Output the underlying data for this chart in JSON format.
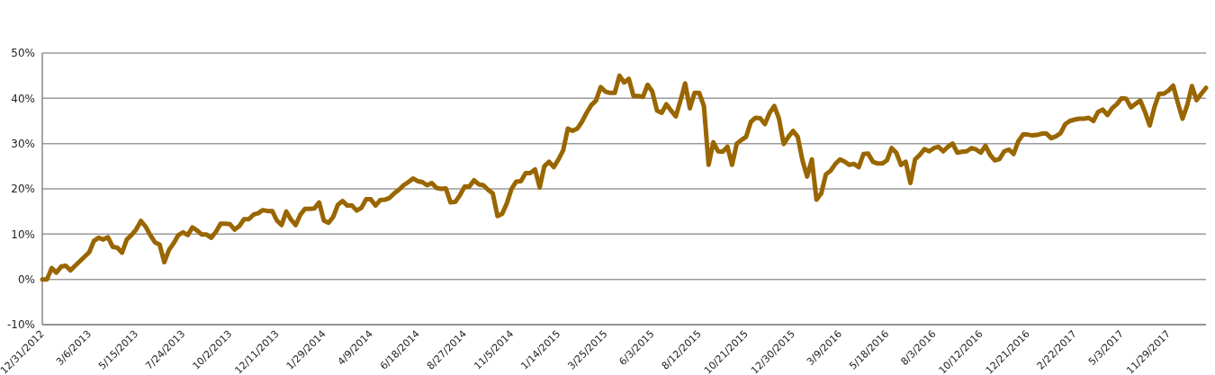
{
  "chart_data": {
    "type": "line",
    "categories": [
      "12/31/2012",
      null,
      null,
      null,
      null,
      null,
      null,
      null,
      null,
      null,
      "3/6/2013",
      null,
      null,
      null,
      null,
      null,
      null,
      null,
      null,
      null,
      "5/15/2013",
      null,
      null,
      null,
      null,
      null,
      null,
      null,
      null,
      null,
      "7/24/2013",
      null,
      null,
      null,
      null,
      null,
      null,
      null,
      null,
      null,
      "10/2/2013",
      null,
      null,
      null,
      null,
      null,
      null,
      null,
      null,
      null,
      "12/11/2013",
      null,
      null,
      null,
      null,
      null,
      null,
      null,
      null,
      null,
      "1/29/2014",
      null,
      null,
      null,
      null,
      null,
      null,
      null,
      null,
      null,
      "4/9/2014",
      null,
      null,
      null,
      null,
      null,
      null,
      null,
      null,
      null,
      "6/18/2014",
      null,
      null,
      null,
      null,
      null,
      null,
      null,
      null,
      null,
      "8/27/2014",
      null,
      null,
      null,
      null,
      null,
      null,
      null,
      null,
      null,
      "11/5/2014",
      null,
      null,
      null,
      null,
      null,
      null,
      null,
      null,
      null,
      "1/14/2015",
      null,
      null,
      null,
      null,
      null,
      null,
      null,
      null,
      null,
      "3/25/2015",
      null,
      null,
      null,
      null,
      null,
      null,
      null,
      null,
      null,
      "6/3/2015",
      null,
      null,
      null,
      null,
      null,
      null,
      null,
      null,
      null,
      "8/12/2015",
      null,
      null,
      null,
      null,
      null,
      null,
      null,
      null,
      null,
      "10/21/2015",
      null,
      null,
      null,
      null,
      null,
      null,
      null,
      null,
      null,
      "12/30/2015",
      null,
      null,
      null,
      null,
      null,
      null,
      null,
      null,
      null,
      "3/9/2016",
      null,
      null,
      null,
      null,
      null,
      null,
      null,
      null,
      null,
      "5/18/2016",
      null,
      null,
      null,
      null,
      null,
      null,
      null,
      null,
      null,
      "8/3/2016",
      null,
      null,
      null,
      null,
      null,
      null,
      null,
      null,
      null,
      "10/12/2016",
      null,
      null,
      null,
      null,
      null,
      null,
      null,
      null,
      null,
      "12/21/2016",
      null,
      null,
      null,
      null,
      null,
      null,
      null,
      null,
      null,
      "2/22/2017",
      null,
      null,
      null,
      null,
      null,
      null,
      null,
      null,
      null,
      "5/3/2017",
      null,
      null,
      null,
      null,
      null,
      null,
      null,
      null,
      null,
      "11/29/2017",
      null,
      null,
      null,
      null,
      null,
      null,
      null,
      null
    ],
    "series": [
      {
        "color": "#996600",
        "values": [
          0,
          0,
          2.5,
          1.5,
          2.8,
          3.0,
          2.0,
          3.0,
          4.0,
          5.0,
          6.0,
          8.5,
          9.2,
          8.8,
          9.3,
          7.2,
          7.0,
          5.9,
          8.8,
          9.8,
          11.0,
          12.9,
          11.7,
          9.8,
          8.2,
          7.7,
          3.8,
          6.5,
          8.0,
          9.8,
          10.4,
          9.8,
          11.5,
          10.8,
          9.9,
          9.9,
          9.2,
          10.5,
          12.3,
          12.3,
          12.2,
          11.0,
          11.8,
          13.3,
          13.3,
          14.3,
          14.6,
          15.3,
          15.1,
          15.1,
          13.0,
          12.0,
          15.0,
          13.2,
          12.0,
          14.3,
          15.6,
          15.6,
          15.7,
          17.0,
          13.0,
          12.5,
          13.8,
          16.5,
          17.3,
          16.3,
          16.3,
          15.2,
          15.8,
          17.7,
          17.7,
          16.3,
          17.5,
          17.6,
          18.0,
          19.0,
          19.8,
          20.8,
          21.5,
          22.3,
          21.7,
          21.5,
          20.8,
          21.3,
          20.2,
          20.0,
          20.1,
          17.0,
          17.1,
          18.6,
          20.5,
          20.5,
          21.9,
          21.0,
          20.8,
          19.8,
          19.0,
          14.0,
          14.5,
          16.8,
          20.0,
          21.6,
          21.7,
          23.5,
          23.5,
          24.3,
          20.3,
          25.0,
          26.0,
          24.8,
          26.5,
          28.5,
          33.3,
          32.8,
          33.3,
          34.8,
          36.8,
          38.5,
          39.5,
          42.5,
          41.5,
          41.2,
          41.2,
          45.0,
          43.5,
          44.3,
          40.5,
          40.5,
          40.3,
          43.0,
          41.5,
          37.3,
          36.8,
          38.7,
          37.3,
          36.0,
          39.5,
          43.3,
          37.8,
          41.2,
          41.2,
          38.3,
          25.3,
          30.3,
          28.3,
          28.2,
          29.3,
          25.3,
          30.0,
          30.8,
          31.5,
          34.8,
          35.7,
          35.6,
          34.3,
          36.8,
          38.3,
          35.5,
          29.9,
          31.5,
          32.8,
          31.5,
          26.3,
          22.7,
          26.5,
          17.6,
          19.0,
          23.2,
          24.0,
          25.5,
          26.5,
          26.0,
          25.3,
          25.5,
          24.8,
          27.7,
          27.8,
          26.0,
          25.6,
          25.6,
          26.3,
          29.0,
          28.0,
          25.3,
          26.0,
          21.3,
          26.5,
          27.5,
          28.8,
          28.3,
          29.0,
          29.3,
          28.3,
          29.3,
          30.0,
          28.0,
          28.2,
          28.3,
          29.0,
          28.7,
          28.0,
          29.5,
          27.5,
          26.3,
          26.6,
          28.3,
          28.7,
          27.7,
          30.5,
          32.0,
          32.0,
          31.8,
          31.9,
          32.2,
          32.2,
          31.2,
          31.6,
          32.3,
          34.3,
          35.0,
          35.3,
          35.5,
          35.5,
          35.7,
          35.0,
          37.0,
          37.5,
          36.3,
          37.8,
          38.7,
          40.0,
          39.9,
          38.0,
          38.8,
          39.5,
          37.0,
          34.0,
          38.0,
          41.0,
          41.0,
          41.7,
          42.8,
          39.0,
          35.5,
          38.5,
          42.7,
          39.6,
          41.0,
          42.3
        ]
      }
    ],
    "ylim": [
      -10,
      50
    ],
    "yticks": [
      {
        "value": -10,
        "label": "-10%"
      },
      {
        "value": 0,
        "label": "0%"
      },
      {
        "value": 10,
        "label": "10%"
      },
      {
        "value": 20,
        "label": "20%"
      },
      {
        "value": 30,
        "label": "30%"
      },
      {
        "value": 40,
        "label": "40%"
      },
      {
        "value": 50,
        "label": "50%"
      }
    ],
    "grid": "y"
  }
}
